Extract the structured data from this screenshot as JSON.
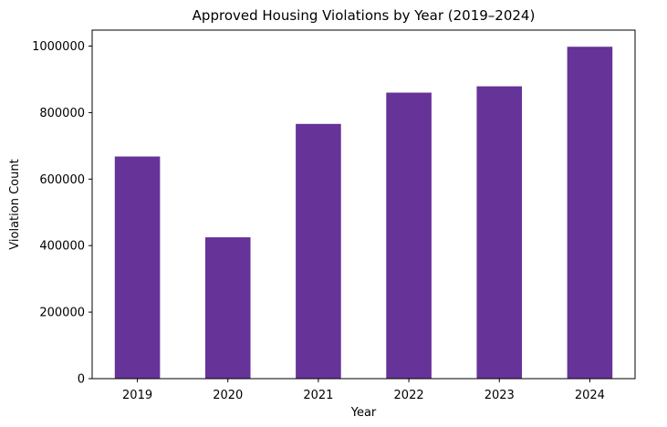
{
  "chart_data": {
    "type": "bar",
    "title": "Approved Housing Violations by Year (2019–2024)",
    "xlabel": "Year",
    "ylabel": "Violation Count",
    "categories": [
      "2019",
      "2020",
      "2021",
      "2022",
      "2023",
      "2024"
    ],
    "values": [
      668000,
      425000,
      766000,
      860000,
      879000,
      998000
    ],
    "ylim": [
      0,
      1048000
    ],
    "yticks": [
      0,
      200000,
      400000,
      600000,
      800000,
      1000000
    ],
    "ytick_labels": [
      "0",
      "200000",
      "400000",
      "600000",
      "800000",
      "1000000"
    ],
    "bar_color": "#663399",
    "grid": false,
    "legend": "none"
  }
}
